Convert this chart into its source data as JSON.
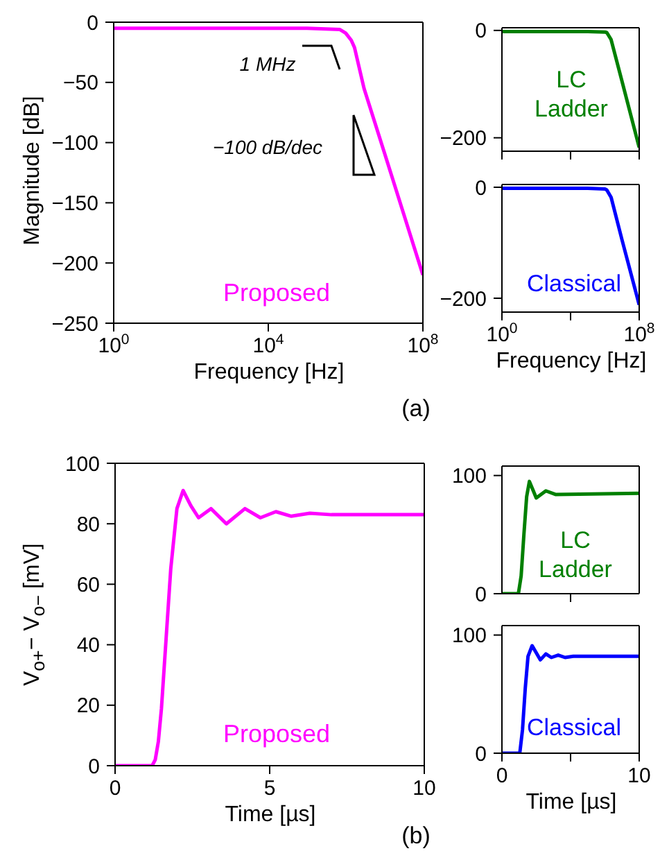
{
  "chart_data": [
    {
      "type": "line",
      "xlabel": "Frequency [Hz]",
      "ylabel": "Magnitude [dB]",
      "log": "x",
      "xlim": [
        1,
        100000000
      ],
      "ylim": [
        -250,
        0
      ],
      "xticks": [
        {
          "value": 1,
          "label": "10$^{0}$"
        },
        {
          "value": 10000,
          "label": "10$^{4}$"
        },
        {
          "value": 100000000,
          "label": "10$^{8}$"
        }
      ],
      "yticks": [
        0,
        -50,
        -100,
        -150,
        -200,
        -250
      ],
      "annotations": [
        "1 MHz",
        "−100 dB/dec",
        "(a)"
      ],
      "series": [
        {
          "name": "Proposed",
          "color": "#ff00ff",
          "x": [
            1,
            100000,
            700000,
            1000000,
            1400000,
            1700000,
            3000000,
            10000000,
            100000000
          ],
          "values": [
            -5,
            -5,
            -6,
            -9,
            -15,
            -21,
            -55,
            -108,
            -210
          ]
        }
      ]
    },
    {
      "type": "line",
      "log": "x",
      "xlim": [
        1,
        100000000
      ],
      "ylim": [
        -225,
        5
      ],
      "tick_labels": "y",
      "xticks": [
        {
          "value": 1,
          "label": null
        },
        {
          "value": 10000,
          "label": null
        },
        {
          "value": 100000000,
          "label": null
        }
      ],
      "yticks": [
        0,
        -200
      ],
      "series": [
        {
          "name": "LC Ladder",
          "color": "#008000",
          "x": [
            1,
            100000,
            1000000,
            1300000,
            2300000,
            10000000,
            100000000
          ],
          "values": [
            -2,
            -2,
            -3,
            -4,
            -17,
            -95,
            -218
          ]
        }
      ]
    },
    {
      "type": "line",
      "xlabel": "Frequency [Hz]",
      "log": "x",
      "xlim": [
        1,
        100000000
      ],
      "ylim": [
        -225,
        5
      ],
      "xticks": [
        {
          "value": 1,
          "label": "10$^{0}$"
        },
        {
          "value": 10000,
          "label": null
        },
        {
          "value": 100000000,
          "label": "10$^{8}$"
        }
      ],
      "yticks": [
        0,
        -200
      ],
      "series": [
        {
          "name": "Classical",
          "color": "#0000ff",
          "x": [
            1,
            100000,
            1000000,
            1300000,
            2300000,
            10000000,
            100000000
          ],
          "values": [
            -2,
            -2,
            -3,
            -5,
            -18,
            -95,
            -212
          ]
        }
      ]
    },
    {
      "type": "line",
      "xlabel": "Time [µs]",
      "ylabel": "V$_{o+}$− V$_{o−}$ [mV]",
      "xlim": [
        0,
        10
      ],
      "ylim": [
        0,
        100
      ],
      "xticks": [
        0,
        5,
        10
      ],
      "yticks": [
        0,
        20,
        40,
        60,
        80,
        100
      ],
      "annotations": [
        "(b)"
      ],
      "series": [
        {
          "name": "Proposed",
          "color": "#ff00ff",
          "x": [
            0,
            1.2,
            1.3,
            1.4,
            1.5,
            1.65,
            1.8,
            2.0,
            2.2,
            2.45,
            2.7,
            3.1,
            3.6,
            4.2,
            4.7,
            5.2,
            5.7,
            6.3,
            7,
            10
          ],
          "values": [
            0,
            0,
            2,
            8,
            19,
            42,
            65,
            85,
            91,
            86,
            82,
            85,
            80,
            85,
            82,
            84,
            82.5,
            83.5,
            83,
            83
          ]
        }
      ]
    },
    {
      "type": "line",
      "xlim": [
        0,
        10
      ],
      "ylim": [
        0,
        108
      ],
      "tick_labels": "y",
      "xticks": [
        {
          "value": 5,
          "label": null
        }
      ],
      "yticks": [
        0,
        100
      ],
      "series": [
        {
          "name": "LC Ladder",
          "color": "#008000",
          "x": [
            0,
            1.2,
            1.4,
            1.6,
            1.8,
            2.0,
            2.25,
            2.5,
            3.2,
            3.9,
            10
          ],
          "values": [
            0,
            0,
            15,
            50,
            82,
            95,
            88,
            81,
            87,
            84,
            85
          ]
        }
      ]
    },
    {
      "type": "line",
      "xlabel": "Time [µs]",
      "xlim": [
        0,
        10
      ],
      "ylim": [
        0,
        108
      ],
      "xticks": [
        0,
        {
          "value": 5,
          "label": null
        },
        10
      ],
      "yticks": [
        0,
        100
      ],
      "series": [
        {
          "name": "Classical",
          "color": "#0000ff",
          "x": [
            0,
            1.3,
            1.5,
            1.7,
            1.9,
            2.2,
            2.5,
            2.8,
            3.2,
            3.6,
            4.1,
            4.6,
            5.2,
            6,
            10
          ],
          "values": [
            0,
            0,
            20,
            55,
            82,
            91,
            85,
            79,
            84,
            81,
            83,
            81,
            82,
            82,
            82
          ]
        }
      ]
    }
  ]
}
